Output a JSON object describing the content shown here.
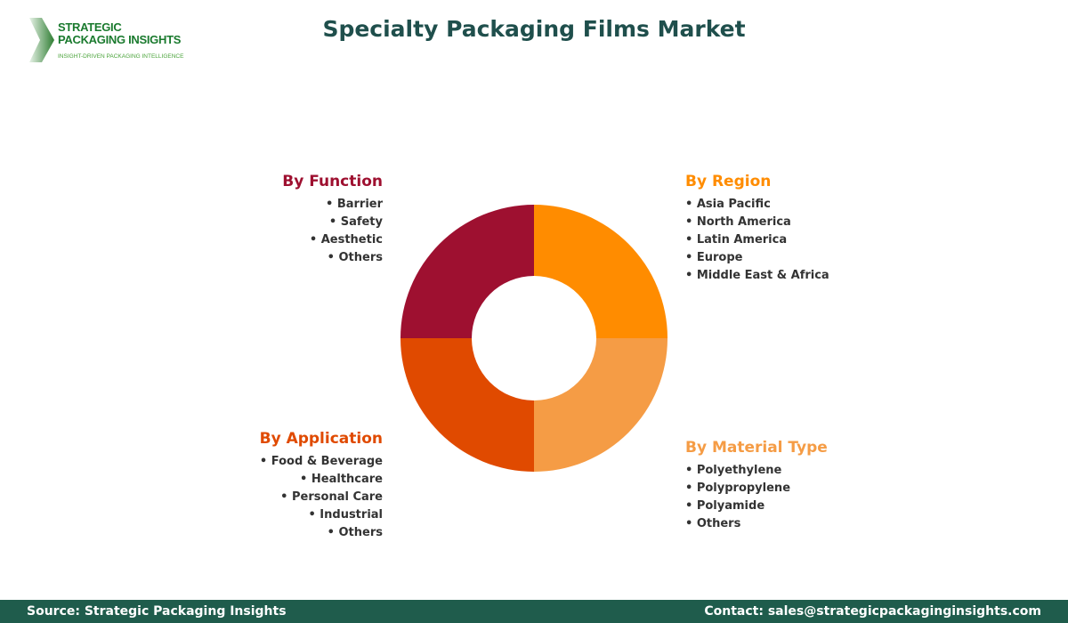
{
  "logo": {
    "line1": "STRATEGIC",
    "line2": "PACKAGING INSIGHTS",
    "tagline": "INSIGHT-DRIVEN PACKAGING INTELLIGENCE"
  },
  "title": "Specialty Packaging Films Market",
  "segments": [
    {
      "title": "By Function",
      "color": "#9e1030",
      "items": [
        "Barrier",
        "Safety",
        "Aesthetic",
        "Others"
      ]
    },
    {
      "title": "By Region",
      "color": "#ff8c00",
      "items": [
        "Asia Pacific",
        "North America",
        "Latin America",
        "Europe",
        "Middle East & Africa"
      ]
    },
    {
      "title": "By Application",
      "color": "#e04a00",
      "items": [
        "Food & Beverage",
        "Healthcare",
        "Personal Care",
        "Industrial",
        "Others"
      ]
    },
    {
      "title": "By Material Type",
      "color": "#f59c45",
      "items": [
        "Polyethylene",
        "Polypropylene",
        "Polyamide",
        "Others"
      ]
    }
  ],
  "footer": {
    "source": "Source: Strategic Packaging Insights",
    "contact": "Contact: sales@strategicpackaginginsights.com"
  }
}
